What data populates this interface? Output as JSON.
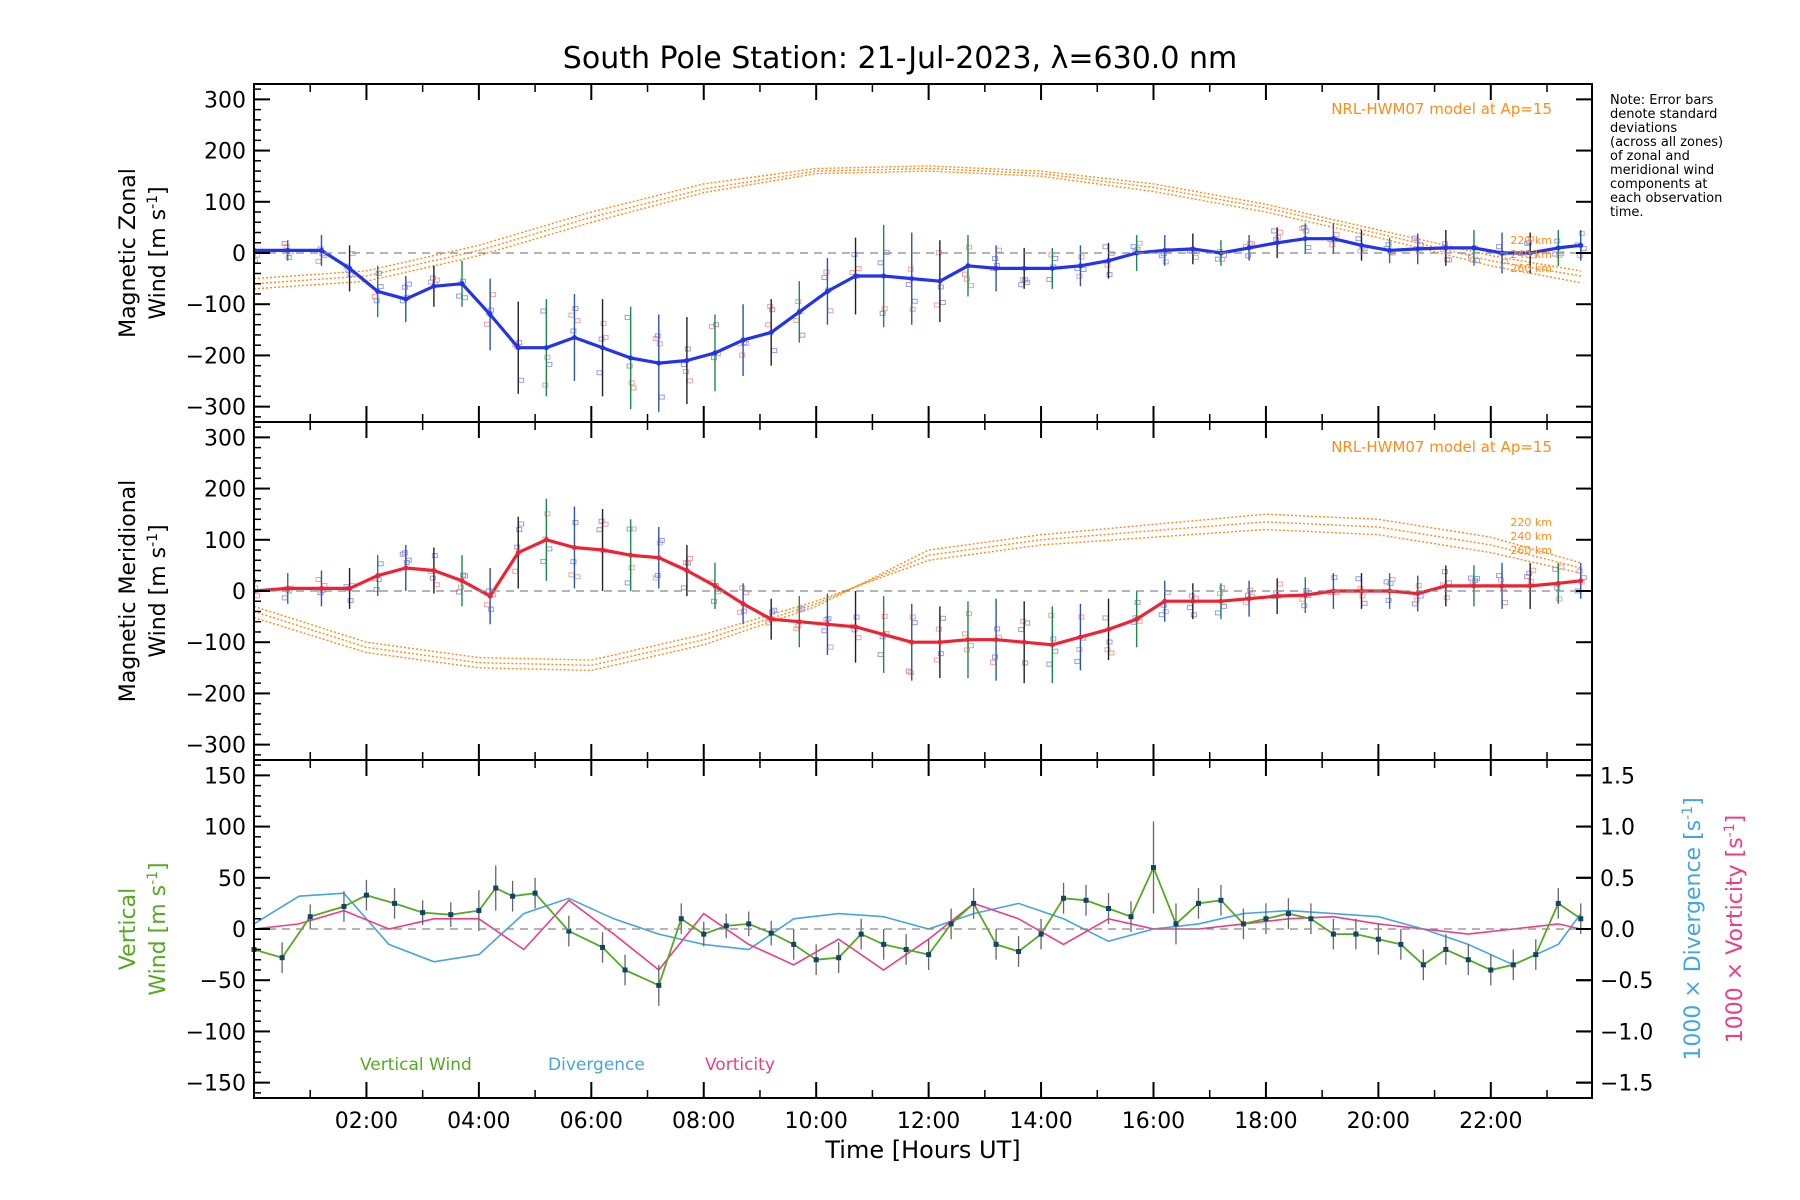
{
  "title": "South Pole Station: 21-Jul-2023, λ=630.0 nm",
  "note_lines": [
    "Note: Error bars",
    "denote standard",
    "deviations",
    "(across all zones)",
    "of zonal and",
    "meridional wind",
    "components at",
    "each observation",
    "time."
  ],
  "colors": {
    "zonal": "#2233ee",
    "meridional": "#ee2233",
    "model": "#ff8c1a",
    "vertical": "#55aa22",
    "divergence": "#44a6e0",
    "vorticity": "#ee3d85",
    "scatter": "#9999ee",
    "scatter_red": "#f4a0a0",
    "axis": "#000000",
    "zero": "#888888"
  },
  "chart_data": [
    {
      "id": "zonal",
      "type": "line",
      "ylabel_top": "Magnetic Zonal",
      "ylabel_bottom_word": "Wind",
      "ylabel_bottom_unit": "[m s",
      "ylabel_bottom_sup": "-1",
      "ylabel_bottom_close": "]",
      "ylim": [
        -330,
        330
      ],
      "yticks": [
        300,
        200,
        100,
        0,
        -100,
        -200,
        -300
      ],
      "ytick_labels": [
        "300",
        "200",
        "100",
        "0",
        "−100",
        "−200",
        "−300"
      ],
      "model_label": "NRL-HWM07 model at Ap=15",
      "model_alt_labels": [
        "220 km",
        "240 km",
        "260 km"
      ],
      "x": [
        0.0,
        0.6,
        1.2,
        1.7,
        2.2,
        2.7,
        3.2,
        3.7,
        4.2,
        4.7,
        5.2,
        5.7,
        6.2,
        6.7,
        7.2,
        7.7,
        8.2,
        8.7,
        9.2,
        9.7,
        10.2,
        10.7,
        11.2,
        11.7,
        12.2,
        12.7,
        13.2,
        13.7,
        14.2,
        14.7,
        15.2,
        15.7,
        16.2,
        16.7,
        17.2,
        17.7,
        18.2,
        18.7,
        19.2,
        19.7,
        20.2,
        20.7,
        21.2,
        21.7,
        22.2,
        22.7,
        23.2,
        23.6
      ],
      "y": [
        5,
        5,
        5,
        -30,
        -75,
        -90,
        -65,
        -60,
        -120,
        -185,
        -185,
        -165,
        -185,
        -205,
        -215,
        -210,
        -195,
        -170,
        -155,
        -115,
        -75,
        -45,
        -45,
        -50,
        -55,
        -25,
        -30,
        -30,
        -30,
        -25,
        -15,
        0,
        5,
        8,
        0,
        10,
        20,
        28,
        28,
        15,
        5,
        8,
        10,
        10,
        0,
        0,
        10,
        15
      ],
      "err": [
        25,
        20,
        30,
        45,
        50,
        45,
        40,
        45,
        70,
        90,
        95,
        85,
        95,
        100,
        95,
        85,
        75,
        70,
        65,
        60,
        65,
        75,
        100,
        90,
        80,
        60,
        45,
        40,
        40,
        40,
        35,
        35,
        30,
        30,
        25,
        25,
        30,
        30,
        30,
        30,
        25,
        30,
        35,
        35,
        40,
        40,
        35,
        30
      ],
      "model": [
        {
          "x": [
            0,
            2,
            4,
            6,
            8,
            10,
            12,
            14,
            16,
            18,
            20,
            22,
            23.6
          ],
          "y": [
            -50,
            -35,
            15,
            80,
            135,
            165,
            170,
            160,
            135,
            95,
            45,
            -5,
            -35
          ]
        },
        {
          "x": [
            0,
            2,
            4,
            6,
            8,
            10,
            12,
            14,
            16,
            18,
            20,
            22,
            23.6
          ],
          "y": [
            -60,
            -45,
            5,
            70,
            125,
            160,
            165,
            155,
            128,
            88,
            38,
            -15,
            -45
          ]
        },
        {
          "x": [
            0,
            2,
            4,
            6,
            8,
            10,
            12,
            14,
            16,
            18,
            20,
            22,
            23.6
          ],
          "y": [
            -70,
            -55,
            -5,
            60,
            118,
            155,
            160,
            150,
            120,
            80,
            30,
            -25,
            -58
          ]
        }
      ]
    },
    {
      "id": "meridional",
      "type": "line",
      "ylabel_top": "Magnetic Meridional",
      "ylabel_bottom_word": "Wind",
      "ylabel_bottom_unit": "[m s",
      "ylabel_bottom_sup": "-1",
      "ylabel_bottom_close": "]",
      "ylim": [
        -330,
        330
      ],
      "yticks": [
        300,
        200,
        100,
        0,
        -100,
        -200,
        -300
      ],
      "ytick_labels": [
        "300",
        "200",
        "100",
        "0",
        "−100",
        "−200",
        "−300"
      ],
      "model_label": "NRL-HWM07 model at Ap=15",
      "model_alt_labels": [
        "220 km",
        "240 km",
        "260 km"
      ],
      "x": [
        0.0,
        0.6,
        1.2,
        1.7,
        2.2,
        2.7,
        3.2,
        3.7,
        4.2,
        4.7,
        5.2,
        5.7,
        6.2,
        6.7,
        7.2,
        7.7,
        8.2,
        8.7,
        9.2,
        9.7,
        10.2,
        10.7,
        11.2,
        11.7,
        12.2,
        12.7,
        13.2,
        13.7,
        14.2,
        14.7,
        15.2,
        15.7,
        16.2,
        16.7,
        17.2,
        17.7,
        18.2,
        18.7,
        19.2,
        19.7,
        20.2,
        20.7,
        21.2,
        21.7,
        22.2,
        22.7,
        23.2,
        23.6
      ],
      "y": [
        0,
        5,
        5,
        5,
        30,
        45,
        40,
        20,
        -10,
        75,
        100,
        85,
        80,
        70,
        65,
        40,
        10,
        -25,
        -55,
        -60,
        -65,
        -70,
        -85,
        -100,
        -100,
        -95,
        -95,
        -100,
        -105,
        -90,
        -75,
        -55,
        -20,
        -20,
        -20,
        -15,
        -10,
        -8,
        0,
        0,
        0,
        -5,
        10,
        10,
        10,
        10,
        15,
        20
      ],
      "err": [
        30,
        30,
        35,
        40,
        40,
        45,
        45,
        50,
        55,
        70,
        80,
        80,
        80,
        70,
        60,
        50,
        45,
        40,
        40,
        50,
        60,
        70,
        75,
        75,
        70,
        75,
        80,
        80,
        75,
        65,
        60,
        55,
        40,
        35,
        35,
        35,
        35,
        35,
        35,
        35,
        35,
        35,
        40,
        40,
        45,
        45,
        40,
        35
      ],
      "model": [
        {
          "x": [
            0,
            2,
            4,
            6,
            8,
            10,
            12,
            14,
            16,
            18,
            20,
            22,
            23.6
          ],
          "y": [
            -30,
            -100,
            -130,
            -135,
            -85,
            -20,
            60,
            90,
            105,
            120,
            110,
            75,
            35
          ]
        },
        {
          "x": [
            0,
            2,
            4,
            6,
            8,
            10,
            12,
            14,
            16,
            18,
            20,
            22,
            23.6
          ],
          "y": [
            -40,
            -110,
            -140,
            -145,
            -95,
            -25,
            70,
            100,
            118,
            135,
            125,
            90,
            45
          ]
        },
        {
          "x": [
            0,
            2,
            4,
            6,
            8,
            10,
            12,
            14,
            16,
            18,
            20,
            22,
            23.6
          ],
          "y": [
            -52,
            -120,
            -150,
            -155,
            -105,
            -30,
            80,
            110,
            130,
            150,
            140,
            105,
            55
          ]
        }
      ]
    },
    {
      "id": "vertical",
      "type": "line",
      "ylabel_top": "Vertical",
      "ylabel_bottom_word": "Wind",
      "ylabel_bottom_unit": "[m s",
      "ylabel_bottom_sup": "-1",
      "ylabel_bottom_close": "]",
      "ylim": [
        -165,
        165
      ],
      "yticks": [
        150,
        100,
        50,
        0,
        -50,
        -100,
        -150
      ],
      "ytick_labels": [
        "150",
        "100",
        "50",
        "0",
        "−50",
        "−100",
        "−150"
      ],
      "y2lim": [
        -1.65,
        1.65
      ],
      "y2ticks": [
        1.5,
        1.0,
        0.5,
        0.0,
        -0.5,
        -1.0,
        -1.5
      ],
      "y2tick_labels": [
        "1.5",
        "1.0",
        "0.5",
        "0.0",
        "−0.5",
        "−1.0",
        "−1.5"
      ],
      "y2label_div": "1000 × Divergence [s",
      "y2label_vor": "1000 × Vorticity [s",
      "y2label_sup": "-1",
      "y2label_close": "]",
      "legend": [
        "Vertical Wind",
        "Divergence",
        "Vorticity"
      ],
      "xlabel": "Time [Hours UT]",
      "xtick_values": [
        2,
        4,
        6,
        8,
        10,
        12,
        14,
        16,
        18,
        20,
        22
      ],
      "xtick_labels": [
        "02:00",
        "04:00",
        "06:00",
        "08:00",
        "10:00",
        "12:00",
        "14:00",
        "16:00",
        "18:00",
        "20:00",
        "22:00"
      ],
      "xlim": [
        0,
        23.8
      ],
      "vertical": {
        "x": [
          0.0,
          0.5,
          1.0,
          1.6,
          2.0,
          2.5,
          3.0,
          3.5,
          4.0,
          4.3,
          4.6,
          5.0,
          5.6,
          6.2,
          6.6,
          7.2,
          7.6,
          8.0,
          8.4,
          8.8,
          9.2,
          9.6,
          10.0,
          10.4,
          10.8,
          11.2,
          11.6,
          12.0,
          12.4,
          12.8,
          13.2,
          13.6,
          14.0,
          14.4,
          14.8,
          15.2,
          15.6,
          16.0,
          16.4,
          16.8,
          17.2,
          17.6,
          18.0,
          18.4,
          18.8,
          19.2,
          19.6,
          20.0,
          20.4,
          20.8,
          21.2,
          21.6,
          22.0,
          22.4,
          22.8,
          23.2,
          23.6
        ],
        "y": [
          -20,
          -28,
          12,
          22,
          33,
          25,
          16,
          14,
          18,
          40,
          32,
          35,
          -2,
          -18,
          -40,
          -55,
          10,
          -5,
          3,
          5,
          -4,
          -15,
          -30,
          -28,
          -5,
          -15,
          -20,
          -25,
          5,
          25,
          -15,
          -22,
          -5,
          30,
          28,
          20,
          12,
          60,
          5,
          25,
          28,
          5,
          10,
          15,
          10,
          -5,
          -5,
          -10,
          -15,
          -35,
          -20,
          -30,
          -40,
          -35,
          -25,
          25,
          10
        ],
        "err": [
          15,
          15,
          12,
          15,
          15,
          15,
          12,
          12,
          20,
          22,
          15,
          15,
          15,
          15,
          15,
          20,
          15,
          12,
          12,
          12,
          12,
          15,
          15,
          15,
          15,
          15,
          15,
          15,
          15,
          15,
          15,
          15,
          15,
          15,
          15,
          15,
          15,
          45,
          20,
          15,
          15,
          15,
          15,
          15,
          15,
          15,
          15,
          15,
          15,
          15,
          15,
          15,
          15,
          15,
          15,
          15,
          15
        ]
      },
      "divergence": {
        "x": [
          0.0,
          0.8,
          1.6,
          2.4,
          3.2,
          4.0,
          4.8,
          5.6,
          6.4,
          7.2,
          8.0,
          8.8,
          9.6,
          10.4,
          11.2,
          12.0,
          12.8,
          13.6,
          14.4,
          15.2,
          16.0,
          16.8,
          17.6,
          18.4,
          19.2,
          20.0,
          20.8,
          21.6,
          22.4,
          23.2,
          23.6
        ],
        "y": [
          0.05,
          0.32,
          0.35,
          -0.15,
          -0.32,
          -0.25,
          0.15,
          0.3,
          0.1,
          -0.05,
          -0.15,
          -0.2,
          0.1,
          0.15,
          0.12,
          0.0,
          0.15,
          0.25,
          0.1,
          -0.12,
          0.0,
          0.05,
          0.15,
          0.18,
          0.15,
          0.12,
          0.0,
          -0.15,
          -0.35,
          -0.15,
          0.15
        ]
      },
      "vorticity": {
        "x": [
          0.0,
          0.8,
          1.6,
          2.4,
          3.2,
          4.0,
          4.8,
          5.6,
          6.4,
          7.2,
          8.0,
          8.8,
          9.6,
          10.4,
          11.2,
          12.0,
          12.8,
          13.6,
          14.4,
          15.2,
          16.0,
          16.8,
          17.6,
          18.4,
          19.2,
          20.0,
          20.8,
          21.6,
          22.4,
          23.2,
          23.6
        ],
        "y": [
          0.0,
          0.05,
          0.18,
          0.0,
          0.1,
          0.1,
          -0.2,
          0.28,
          -0.05,
          -0.4,
          0.15,
          -0.15,
          -0.35,
          -0.1,
          -0.4,
          -0.1,
          0.25,
          0.1,
          -0.15,
          0.1,
          0.0,
          0.0,
          0.05,
          0.1,
          0.12,
          0.05,
          0.0,
          -0.05,
          0.0,
          0.05,
          0.0
        ]
      }
    }
  ]
}
